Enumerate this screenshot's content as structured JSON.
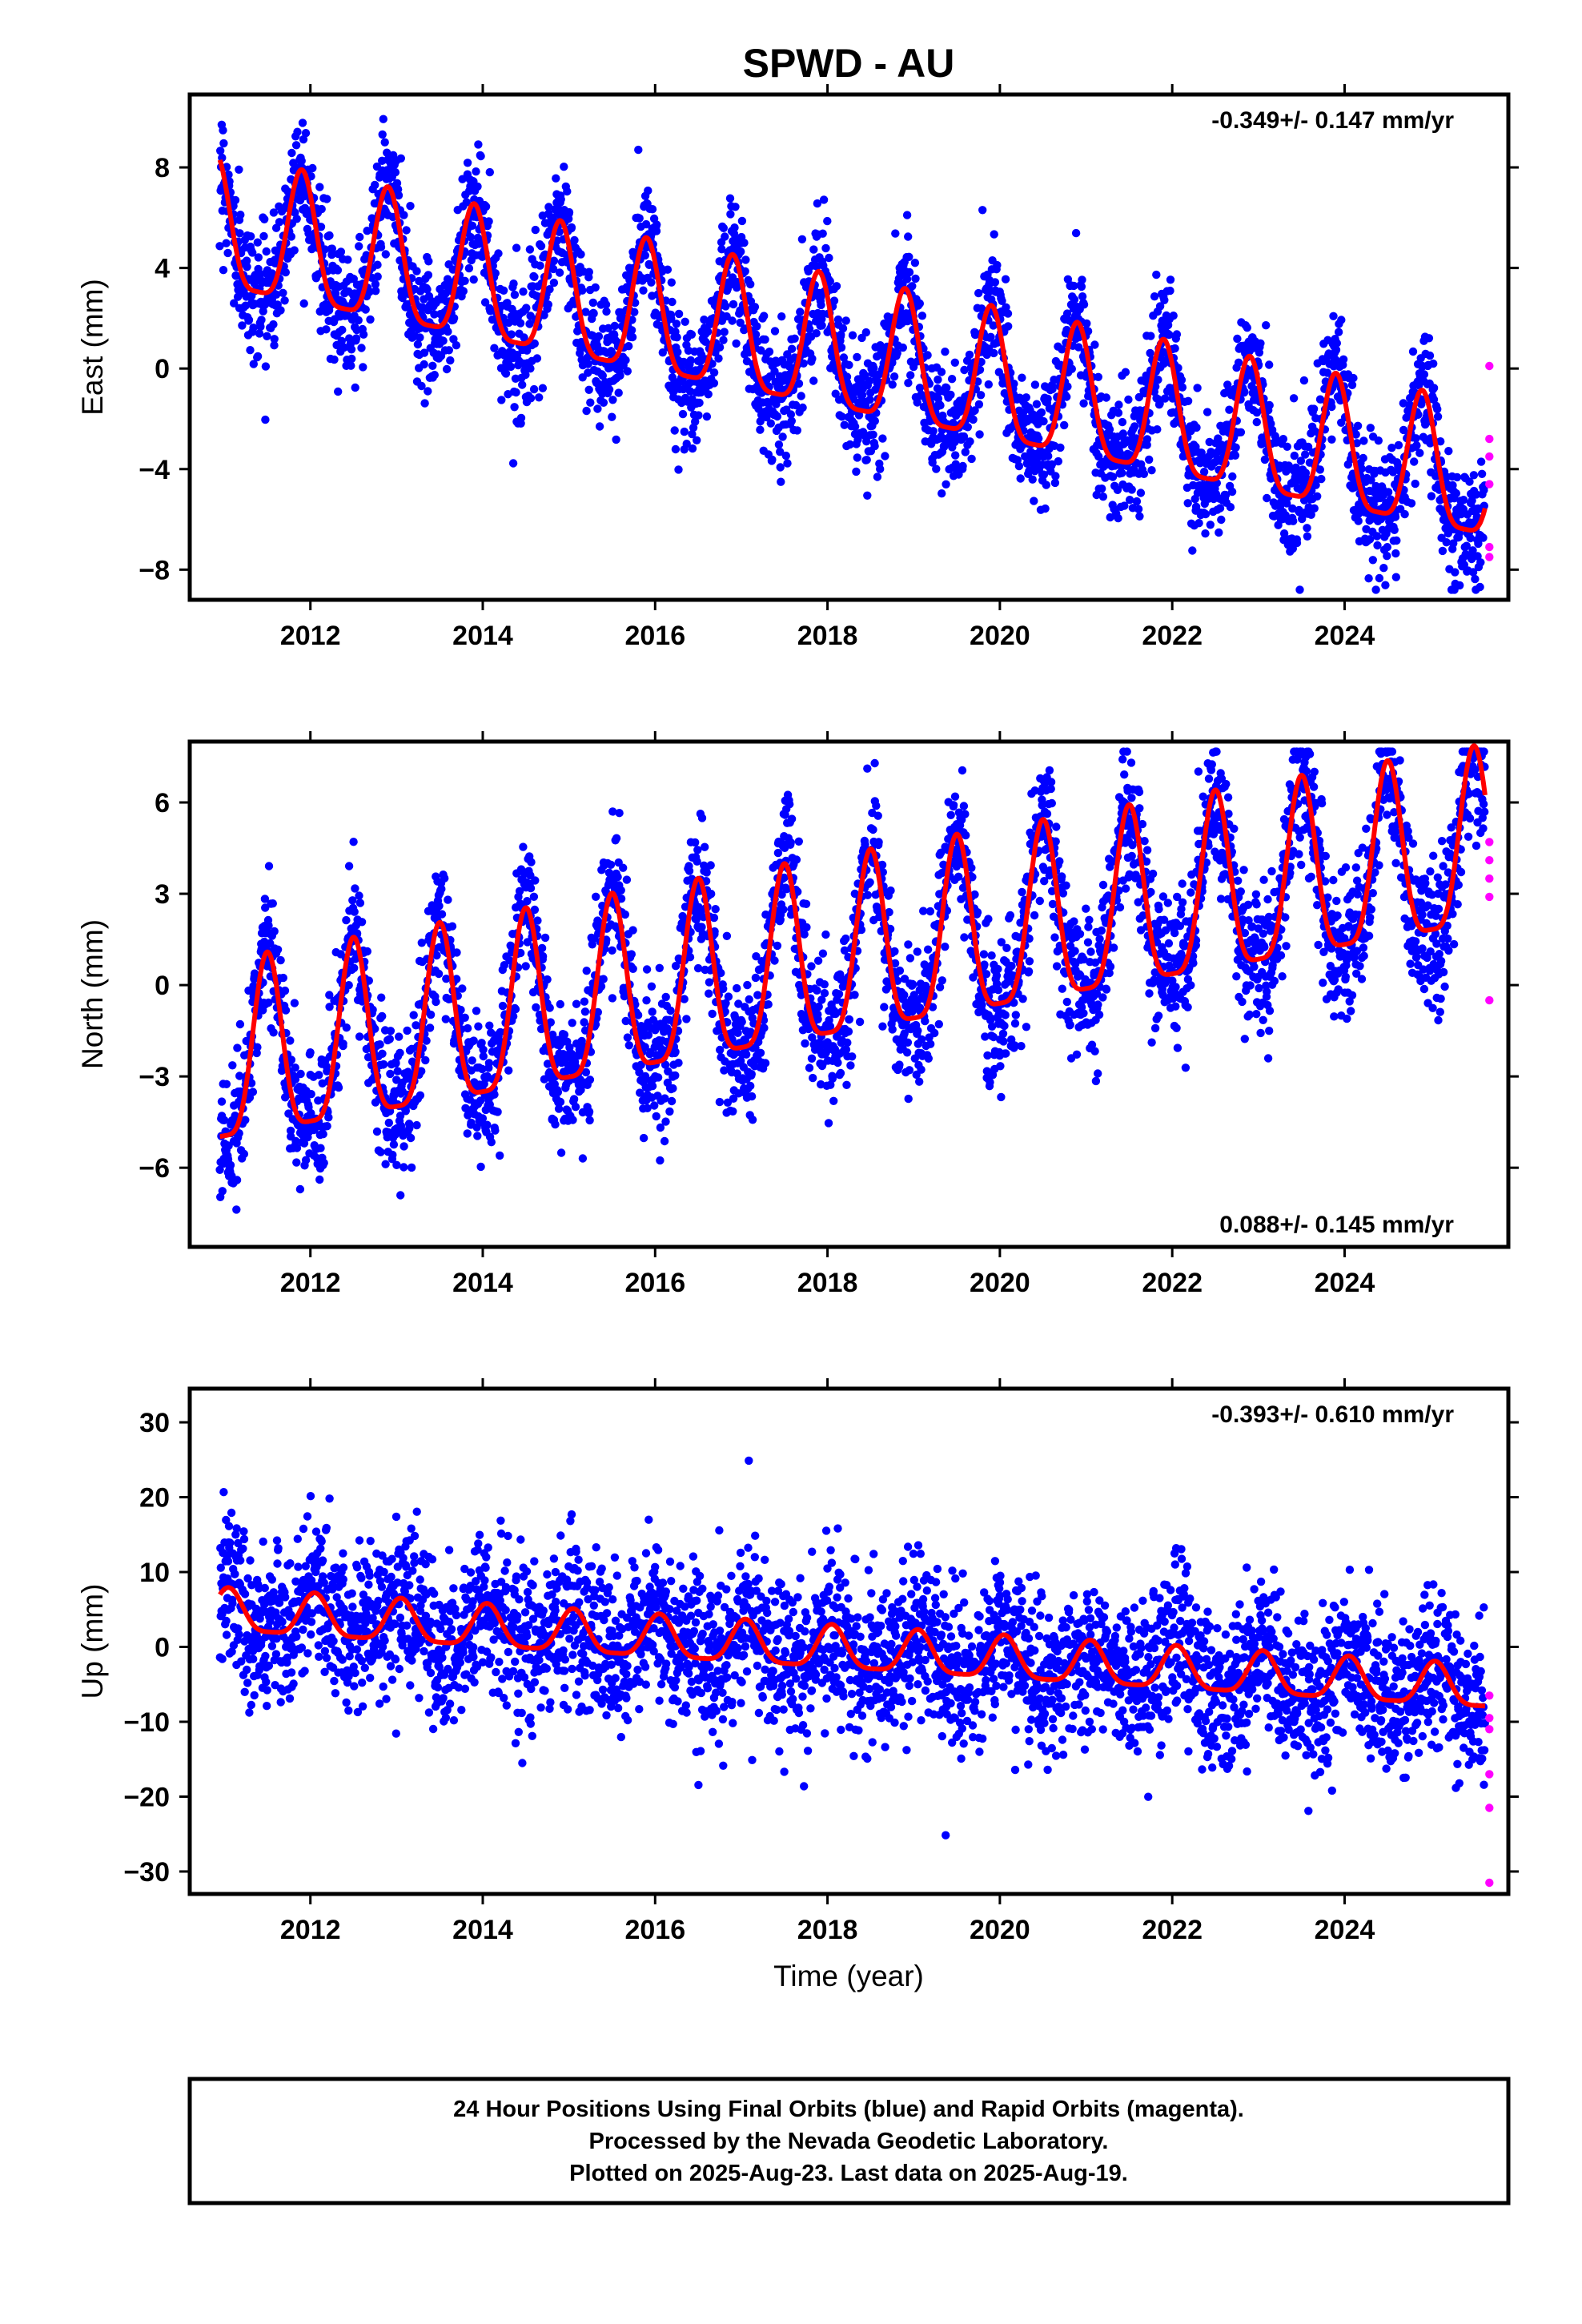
{
  "title": "SPWD - AU",
  "xlabel": "Time (year)",
  "colors": {
    "final_orbits": "#0000ff",
    "rapid_orbits": "#ff00ff",
    "model_fit": "#ff0000",
    "frame": "#000000"
  },
  "chart_data": [
    {
      "type": "scatter",
      "ylabel": "East (mm)",
      "xlim": [
        2010.6,
        2025.9
      ],
      "ylim": [
        -9.2,
        10.9
      ],
      "x_ticks": [
        2012,
        2014,
        2016,
        2018,
        2020,
        2022,
        2024
      ],
      "y_ticks": [
        -8,
        -4,
        0,
        4,
        8
      ],
      "rate_label": "-0.349+/- 0.147 mm/yr",
      "rate_position": "top-right",
      "model": {
        "start_value": 5.3,
        "end_value": -4.6,
        "annual_amplitude": 2.6,
        "peak_phase": 0.9
      },
      "rapid_values": [
        0.1,
        -2.8,
        -3.5,
        -4.6,
        -7.1,
        -7.5
      ]
    },
    {
      "type": "scatter",
      "ylabel": "North (mm)",
      "xlim": [
        2010.6,
        2025.9
      ],
      "ylim": [
        -8.6,
        8.0
      ],
      "x_ticks": [
        2012,
        2014,
        2016,
        2018,
        2020,
        2022,
        2024
      ],
      "y_ticks": [
        -6,
        -3,
        0,
        3,
        6
      ],
      "rate_label": "0.088+/- 0.145 mm/yr",
      "rate_position": "bottom-right",
      "model": {
        "start_value": -2.8,
        "end_value": 4.3,
        "annual_amplitude": 2.9,
        "peak_phase": 0.5
      },
      "rapid_values": [
        4.7,
        4.1,
        3.5,
        2.9,
        -0.5
      ]
    },
    {
      "type": "scatter",
      "ylabel": "Up (mm)",
      "xlim": [
        2010.6,
        2025.9
      ],
      "ylim": [
        -33.0,
        34.5
      ],
      "x_ticks": [
        2012,
        2014,
        2016,
        2018,
        2020,
        2022,
        2024
      ],
      "y_ticks": [
        -30,
        -20,
        -10,
        0,
        10,
        20,
        30
      ],
      "rate_label": "-0.393+/- 0.610 mm/yr",
      "rate_position": "top-right",
      "model": {
        "start_value": 4.5,
        "end_value": -5.8,
        "annual_amplitude": 2.8,
        "peak_phase": 0.05
      },
      "rapid_values": [
        -6.5,
        -9.5,
        -11.0,
        -17.0,
        -21.5,
        -31.5
      ]
    }
  ],
  "footer": {
    "line1": "24 Hour Positions Using Final Orbits (blue) and Rapid Orbits (magenta).",
    "line2": "Processed by the Nevada Geodetic Laboratory.",
    "line3": "Plotted on 2025-Aug-23. Last data on 2025-Aug-19."
  }
}
